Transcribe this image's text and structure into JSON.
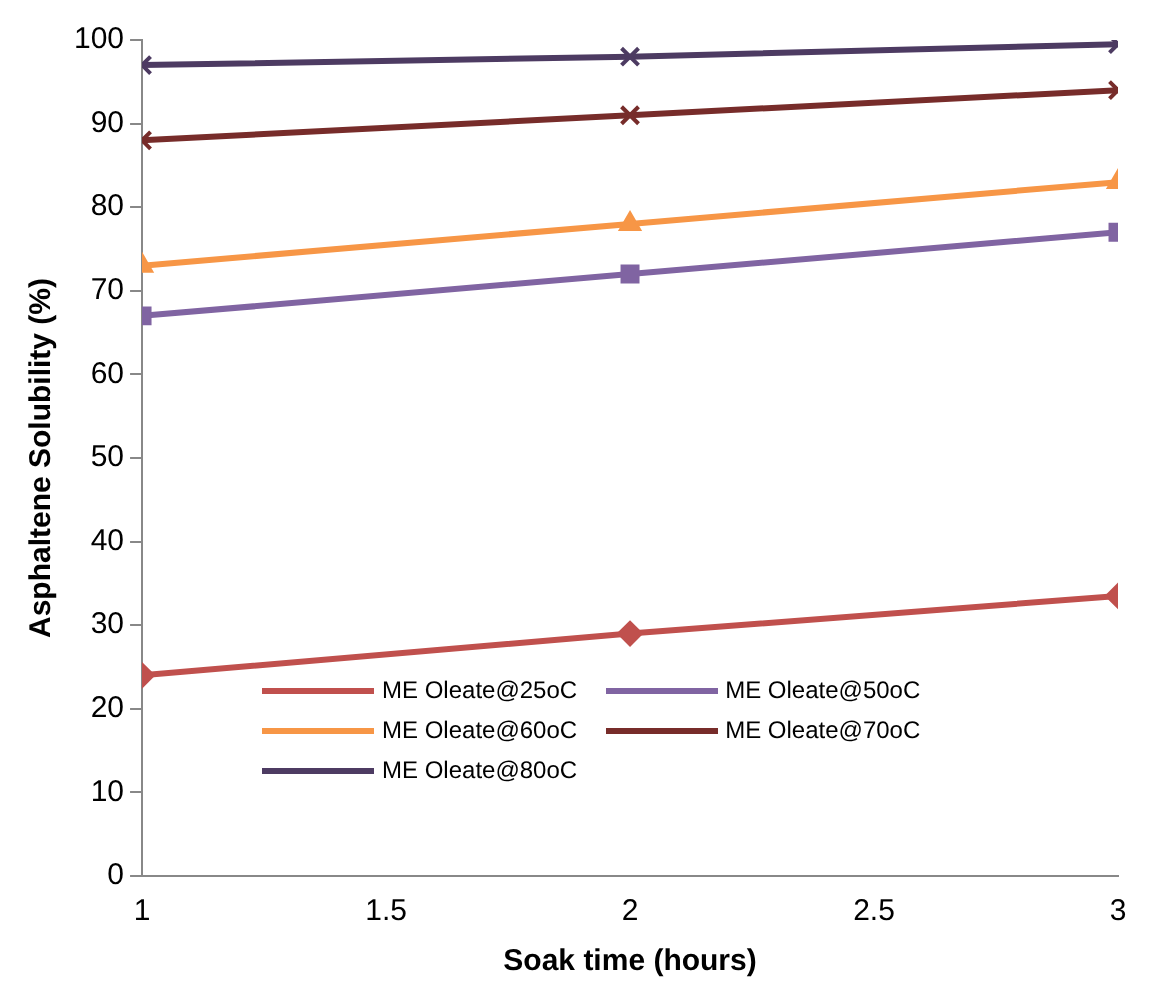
{
  "chart_data": {
    "type": "line",
    "xlabel": "Soak time (hours)",
    "ylabel": "Asphaltene Solubility (%)",
    "x": [
      1,
      2,
      3
    ],
    "series": [
      {
        "name": "ME Oleate@25oC",
        "color": "#c0504d",
        "marker": "diamond",
        "values": [
          24,
          29,
          33.5
        ]
      },
      {
        "name": "ME Oleate@50oC",
        "color": "#8064a2",
        "marker": "square",
        "values": [
          67,
          72,
          77
        ]
      },
      {
        "name": "ME Oleate@60oC",
        "color": "#f79646",
        "marker": "triangle",
        "values": [
          73,
          78,
          83
        ]
      },
      {
        "name": "ME Oleate@70oC",
        "color": "#772c2a",
        "marker": "cross",
        "values": [
          88,
          91,
          94
        ]
      },
      {
        "name": "ME Oleate@80oC",
        "color": "#4d3b62",
        "marker": "cross",
        "values": [
          97,
          98,
          99.5
        ]
      }
    ],
    "xlim": [
      1,
      3
    ],
    "xticks": [
      1,
      1.5,
      2,
      2.5,
      3
    ],
    "ylim": [
      0,
      100
    ],
    "yticks": [
      0,
      10,
      20,
      30,
      40,
      50,
      60,
      70,
      80,
      90,
      100
    ],
    "grid": false,
    "legend": "bottom",
    "line_style": "solid"
  }
}
